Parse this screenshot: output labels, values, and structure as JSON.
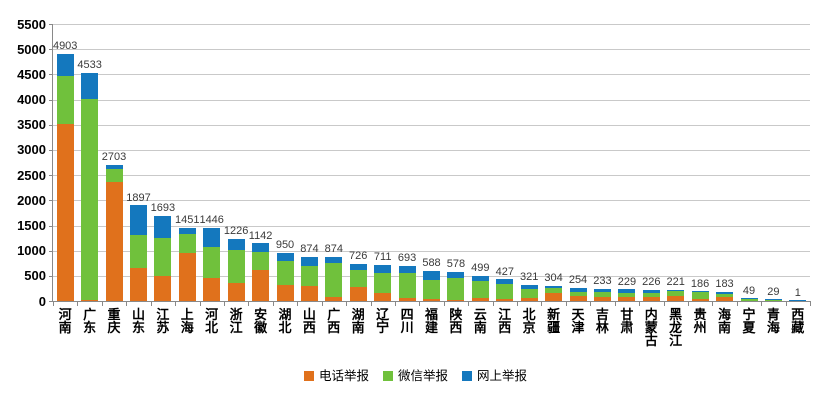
{
  "chart_data": {
    "type": "bar",
    "stacked": true,
    "title": "",
    "xlabel": "",
    "ylabel": "",
    "ylim": [
      0,
      5500
    ],
    "ytick_step": 500,
    "yticks": [
      0,
      500,
      1000,
      1500,
      2000,
      2500,
      3000,
      3500,
      4000,
      4500,
      5000,
      5500
    ],
    "grid": true,
    "legend_position": "bottom",
    "categories": [
      "河南",
      "广东",
      "重庆",
      "山东",
      "江苏",
      "上海",
      "河北",
      "浙江",
      "安徽",
      "湖北",
      "山西",
      "广西",
      "湖南",
      "辽宁",
      "四川",
      "福建",
      "陕西",
      "云南",
      "江西",
      "北京",
      "新疆",
      "天津",
      "吉林",
      "甘肃",
      "内蒙古",
      "黑龙江",
      "贵州",
      "海南",
      "宁夏",
      "青海",
      "西藏"
    ],
    "totals": [
      4903,
      4533,
      2703,
      1897,
      1693,
      1451,
      1446,
      1226,
      1142,
      950,
      874,
      874,
      726,
      711,
      693,
      588,
      578,
      499,
      427,
      321,
      304,
      254,
      233,
      229,
      226,
      221,
      186,
      183,
      49,
      29,
      1
    ],
    "series": [
      {
        "key": "phone-reports",
        "name": "电话举报",
        "color": "#e0711c",
        "values": [
          3510,
          25,
          2370,
          650,
          500,
          947,
          451,
          364,
          616,
          318,
          298,
          85,
          284,
          153,
          54,
          34,
          20,
          54,
          30,
          60,
          165,
          105,
          85,
          85,
          70,
          100,
          35,
          70,
          5,
          3,
          0
        ]
      },
      {
        "key": "wechat-reports",
        "name": "微信举报",
        "color": "#70c13c",
        "values": [
          965,
          3981,
          245,
          660,
          745,
          378,
          627,
          649,
          363,
          482,
          397,
          664,
          332,
          409,
          496,
          383,
          443,
          349,
          300,
          175,
          87,
          80,
          88,
          68,
          83,
          90,
          140,
          70,
          34,
          16,
          0
        ]
      },
      {
        "key": "online-reports",
        "name": "网上举报",
        "color": "#1478be",
        "values": [
          428,
          527,
          88,
          587,
          448,
          126,
          368,
          213,
          163,
          150,
          179,
          125,
          110,
          149,
          143,
          171,
          115,
          96,
          97,
          86,
          52,
          69,
          60,
          76,
          73,
          31,
          11,
          43,
          10,
          10,
          1
        ]
      }
    ],
    "colors": {
      "gridline": "#c9c9c9",
      "axis": "#898989",
      "data_label": "#3a3a3a",
      "axis_label": "#000000",
      "background": "#ffffff"
    }
  }
}
